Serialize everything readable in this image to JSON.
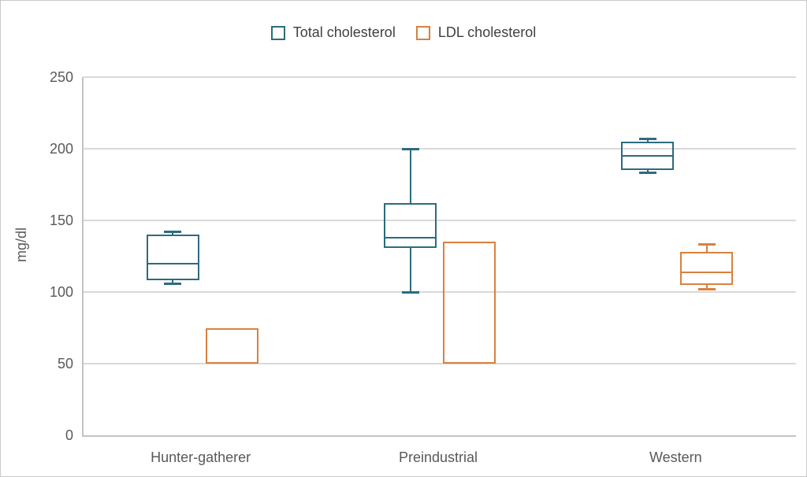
{
  "figure": {
    "ylabel": "mg/dl"
  },
  "styles": {
    "grid_color": "#d9d9d9",
    "axis_color": "#c3c3c3",
    "tick_text_color": "#595959",
    "legend_text_color": "#404040",
    "total_color": "#2c6b80",
    "ldl_color": "#d9813f"
  },
  "chart_data": {
    "type": "boxplot",
    "title": "",
    "ylabel": "mg/dl",
    "xlabel": "",
    "ylim": [
      0,
      250
    ],
    "y_ticks": [
      0,
      50,
      100,
      150,
      200,
      250
    ],
    "grid": "horizontal",
    "legend_position": "top-center",
    "categories": [
      "Hunter-gatherer",
      "Preindustrial",
      "Western"
    ],
    "series": [
      {
        "name": "Total cholesterol",
        "color": "#2c6b80",
        "boxes": [
          {
            "category": "Hunter-gatherer",
            "min": 106,
            "q1": 108,
            "median": 120,
            "q3": 140,
            "max": 142
          },
          {
            "category": "Preindustrial",
            "min": 100,
            "q1": 131,
            "median": 138,
            "q3": 162,
            "max": 200
          },
          {
            "category": "Western",
            "min": 183,
            "q1": 185,
            "median": 195,
            "q3": 205,
            "max": 207
          }
        ]
      },
      {
        "name": "LDL cholesterol",
        "color": "#d9813f",
        "boxes": [
          {
            "category": "Hunter-gatherer",
            "min": null,
            "q1": 50,
            "median": null,
            "q3": 75,
            "max": null
          },
          {
            "category": "Preindustrial",
            "min": null,
            "q1": 50,
            "median": null,
            "q3": 135,
            "max": null
          },
          {
            "category": "Western",
            "min": 102,
            "q1": 105,
            "median": 114,
            "q3": 128,
            "max": 133
          }
        ]
      }
    ]
  }
}
